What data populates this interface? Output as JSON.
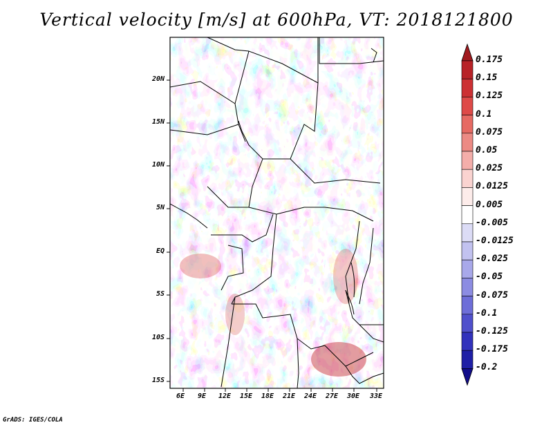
{
  "title": "Vertical velocity [m/s] at 600hPa, VT: 2018121800",
  "credit": "GrADS: IGES/COLA",
  "map": {
    "lat_labels": [
      "20N",
      "15N",
      "10N",
      "5N",
      "EQ",
      "5S",
      "10S",
      "15S"
    ],
    "lon_labels": [
      "6E",
      "9E",
      "12E",
      "15E",
      "18E",
      "21E",
      "24E",
      "27E",
      "30E",
      "33E"
    ],
    "field_colors": {
      "strong_up_red": "#b2182b",
      "up_red": "#e8777a",
      "light_red": "#f4c0c0",
      "near_zero": "#ffffff",
      "light_blue": "#c6c6f0",
      "down_blue": "#8f8fe0",
      "strong_down_blue": "#4a4ac8"
    }
  },
  "colorbar": {
    "labels": [
      "0.175",
      "0.15",
      "0.125",
      "0.1",
      "0.075",
      "0.05",
      "0.025",
      "0.0125",
      "0.005",
      "-0.005",
      "-0.0125",
      "-0.025",
      "-0.05",
      "-0.075",
      "-0.1",
      "-0.125",
      "-0.175",
      "-0.2"
    ],
    "colors": [
      "#a11a1f",
      "#b82227",
      "#cc3033",
      "#de4a48",
      "#e66a63",
      "#ec8a84",
      "#f4aeaa",
      "#fad3d0",
      "#fdecea",
      "#ffffff",
      "#dcdcf6",
      "#c2c2f0",
      "#a8a8ea",
      "#8c8ce2",
      "#6e6ed8",
      "#5050cc",
      "#3232bc",
      "#1f1fa6",
      "#120d8a"
    ]
  }
}
